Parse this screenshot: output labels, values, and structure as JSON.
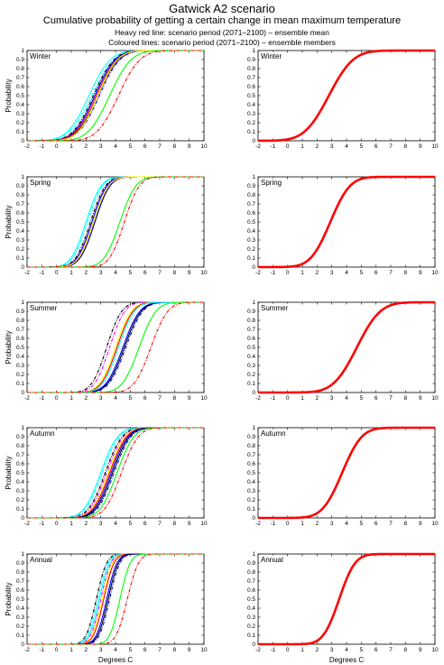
{
  "figure": {
    "title": "Gatwick A2 scenario",
    "subtitle": "Cumulative probability of getting a certain change in mean maximum temperature",
    "line1": "Heavy red line: scenario period (2071–2100) – ensemble mean",
    "line2": "Coloured lines: scenario period (2071–2100) – ensemble members"
  },
  "chart_data": [
    {
      "type": "line",
      "panel": "members",
      "label": "Winter",
      "xlabel": "",
      "ylabel": "Probability",
      "xlim": [
        -2,
        10
      ],
      "ylim": [
        0,
        1
      ],
      "xticks": [
        -2,
        -1,
        0,
        1,
        2,
        3,
        4,
        5,
        6,
        7,
        8,
        9,
        10
      ],
      "yticks": [
        0,
        0.1,
        0.2,
        0.3,
        0.4,
        0.5,
        0.6,
        0.7,
        0.8,
        0.9,
        1
      ],
      "series": [
        {
          "style": "solid",
          "color": "#00ffff",
          "mu": 2.2,
          "sigma": 1.15
        },
        {
          "style": "dashdot",
          "color": "#00ffff",
          "mu": 2.4,
          "sigma": 1.2
        },
        {
          "style": "dashdot",
          "color": "#000000",
          "mu": 2.5,
          "sigma": 1.1
        },
        {
          "style": "dashdot",
          "color": "#ff00ff",
          "mu": 2.6,
          "sigma": 1.1
        },
        {
          "style": "solid",
          "color": "#0000ff",
          "mu": 2.6,
          "sigma": 1.1
        },
        {
          "style": "solid",
          "color": "#000000",
          "mu": 2.8,
          "sigma": 1.1
        },
        {
          "style": "dashdot",
          "color": "#0000ff",
          "mu": 2.9,
          "sigma": 1.1
        },
        {
          "style": "solid",
          "color": "#ff0000",
          "mu": 2.7,
          "sigma": 1.1
        },
        {
          "style": "solid",
          "color": "#ffff00",
          "mu": 2.8,
          "sigma": 1.05
        },
        {
          "style": "solid",
          "color": "#00ff00",
          "mu": 3.6,
          "sigma": 1.15
        },
        {
          "style": "dashdot",
          "color": "#ff0000",
          "mu": 4.2,
          "sigma": 1.15
        }
      ]
    },
    {
      "type": "line",
      "panel": "mean",
      "label": "Winter",
      "xlabel": "",
      "ylabel": "",
      "xlim": [
        -2,
        10
      ],
      "ylim": [
        0,
        1
      ],
      "xticks": [
        -2,
        -1,
        0,
        1,
        2,
        3,
        4,
        5,
        6,
        7,
        8,
        9,
        10
      ],
      "yticks": [
        0,
        0.1,
        0.2,
        0.3,
        0.4,
        0.5,
        0.6,
        0.7,
        0.8,
        0.9,
        1
      ],
      "series": [
        {
          "style": "heavy",
          "color": "#ff0000",
          "mu": 2.8,
          "sigma": 1.3
        }
      ]
    },
    {
      "type": "line",
      "panel": "members",
      "label": "Spring",
      "xlabel": "",
      "ylabel": "Probability",
      "xlim": [
        -2,
        10
      ],
      "ylim": [
        0,
        1
      ],
      "xticks": [
        -2,
        -1,
        0,
        1,
        2,
        3,
        4,
        5,
        6,
        7,
        8,
        9,
        10
      ],
      "yticks": [
        0,
        0.1,
        0.2,
        0.3,
        0.4,
        0.5,
        0.6,
        0.7,
        0.8,
        0.9,
        1
      ],
      "series": [
        {
          "style": "solid",
          "color": "#00ffff",
          "mu": 2.0,
          "sigma": 0.8
        },
        {
          "style": "dashdot",
          "color": "#00ffff",
          "mu": 2.1,
          "sigma": 0.8
        },
        {
          "style": "dashdot",
          "color": "#000000",
          "mu": 2.3,
          "sigma": 0.8
        },
        {
          "style": "dashdot",
          "color": "#ff00ff",
          "mu": 2.4,
          "sigma": 0.8
        },
        {
          "style": "solid",
          "color": "#0000ff",
          "mu": 2.4,
          "sigma": 0.8
        },
        {
          "style": "solid",
          "color": "#000000",
          "mu": 2.6,
          "sigma": 0.8
        },
        {
          "style": "dashdot",
          "color": "#0000ff",
          "mu": 2.6,
          "sigma": 0.8
        },
        {
          "style": "solid",
          "color": "#ff0000",
          "mu": 2.5,
          "sigma": 0.8
        },
        {
          "style": "solid",
          "color": "#ffff00",
          "mu": 2.5,
          "sigma": 0.8
        },
        {
          "style": "solid",
          "color": "#00ff00",
          "mu": 4.3,
          "sigma": 0.85
        },
        {
          "style": "dashdot",
          "color": "#ff0000",
          "mu": 4.6,
          "sigma": 0.8
        }
      ]
    },
    {
      "type": "line",
      "panel": "mean",
      "label": "Spring",
      "xlabel": "",
      "ylabel": "",
      "xlim": [
        -2,
        10
      ],
      "ylim": [
        0,
        1
      ],
      "xticks": [
        -2,
        -1,
        0,
        1,
        2,
        3,
        4,
        5,
        6,
        7,
        8,
        9,
        10
      ],
      "yticks": [
        0,
        0.1,
        0.2,
        0.3,
        0.4,
        0.5,
        0.6,
        0.7,
        0.8,
        0.9,
        1
      ],
      "series": [
        {
          "style": "heavy",
          "color": "#ff0000",
          "mu": 2.9,
          "sigma": 1.05
        }
      ]
    },
    {
      "type": "line",
      "panel": "members",
      "label": "Summer",
      "xlabel": "",
      "ylabel": "Probability",
      "xlim": [
        -2,
        10
      ],
      "ylim": [
        0,
        1
      ],
      "xticks": [
        -2,
        -1,
        0,
        1,
        2,
        3,
        4,
        5,
        6,
        7,
        8,
        9,
        10
      ],
      "yticks": [
        0,
        0.1,
        0.2,
        0.3,
        0.4,
        0.5,
        0.6,
        0.7,
        0.8,
        0.9,
        1
      ],
      "series": [
        {
          "style": "dashdot",
          "color": "#000000",
          "mu": 3.4,
          "sigma": 0.8
        },
        {
          "style": "dashdot",
          "color": "#ff00ff",
          "mu": 3.6,
          "sigma": 0.8
        },
        {
          "style": "solid",
          "color": "#ffff00",
          "mu": 4.0,
          "sigma": 0.85
        },
        {
          "style": "solid",
          "color": "#ff0000",
          "mu": 4.1,
          "sigma": 0.85
        },
        {
          "style": "solid",
          "color": "#0000ff",
          "mu": 4.5,
          "sigma": 0.9
        },
        {
          "style": "solid",
          "color": "#000000",
          "mu": 4.6,
          "sigma": 0.9
        },
        {
          "style": "dashdot",
          "color": "#0000ff",
          "mu": 4.7,
          "sigma": 0.9
        },
        {
          "style": "solid",
          "color": "#00ffff",
          "mu": 4.2,
          "sigma": 0.85
        },
        {
          "style": "solid",
          "color": "#00ff00",
          "mu": 5.6,
          "sigma": 0.9
        },
        {
          "style": "dashdot",
          "color": "#ff0000",
          "mu": 6.4,
          "sigma": 0.9
        }
      ]
    },
    {
      "type": "line",
      "panel": "mean",
      "label": "Summer",
      "xlabel": "",
      "ylabel": "",
      "xlim": [
        -2,
        10
      ],
      "ylim": [
        0,
        1
      ],
      "xticks": [
        -2,
        -1,
        0,
        1,
        2,
        3,
        4,
        5,
        6,
        7,
        8,
        9,
        10
      ],
      "yticks": [
        0,
        0.1,
        0.2,
        0.3,
        0.4,
        0.5,
        0.6,
        0.7,
        0.8,
        0.9,
        1
      ],
      "series": [
        {
          "style": "heavy",
          "color": "#ff0000",
          "mu": 4.7,
          "sigma": 1.25
        }
      ]
    },
    {
      "type": "line",
      "panel": "members",
      "label": "Autumn",
      "xlabel": "",
      "ylabel": "Probability",
      "xlim": [
        -2,
        10
      ],
      "ylim": [
        0,
        1
      ],
      "xticks": [
        -2,
        -1,
        0,
        1,
        2,
        3,
        4,
        5,
        6,
        7,
        8,
        9,
        10
      ],
      "yticks": [
        0,
        0.1,
        0.2,
        0.3,
        0.4,
        0.5,
        0.6,
        0.7,
        0.8,
        0.9,
        1
      ],
      "series": [
        {
          "style": "solid",
          "color": "#00ffff",
          "mu": 3.0,
          "sigma": 0.9
        },
        {
          "style": "dashdot",
          "color": "#00ffff",
          "mu": 3.1,
          "sigma": 0.9
        },
        {
          "style": "dashdot",
          "color": "#000000",
          "mu": 3.3,
          "sigma": 0.9
        },
        {
          "style": "dashdot",
          "color": "#ff00ff",
          "mu": 3.4,
          "sigma": 0.9
        },
        {
          "style": "solid",
          "color": "#ffff00",
          "mu": 3.5,
          "sigma": 0.9
        },
        {
          "style": "solid",
          "color": "#ff0000",
          "mu": 3.6,
          "sigma": 0.9
        },
        {
          "style": "solid",
          "color": "#0000ff",
          "mu": 3.7,
          "sigma": 0.9
        },
        {
          "style": "solid",
          "color": "#000000",
          "mu": 3.8,
          "sigma": 0.9
        },
        {
          "style": "dashdot",
          "color": "#0000ff",
          "mu": 3.9,
          "sigma": 0.9
        },
        {
          "style": "solid",
          "color": "#00ff00",
          "mu": 4.1,
          "sigma": 0.9
        },
        {
          "style": "dashdot",
          "color": "#ff0000",
          "mu": 4.4,
          "sigma": 0.9
        }
      ]
    },
    {
      "type": "line",
      "panel": "mean",
      "label": "Autumn",
      "xlabel": "",
      "ylabel": "",
      "xlim": [
        -2,
        10
      ],
      "ylim": [
        0,
        1
      ],
      "xticks": [
        -2,
        -1,
        0,
        1,
        2,
        3,
        4,
        5,
        6,
        7,
        8,
        9,
        10
      ],
      "yticks": [
        0,
        0.1,
        0.2,
        0.3,
        0.4,
        0.5,
        0.6,
        0.7,
        0.8,
        0.9,
        1
      ],
      "series": [
        {
          "style": "heavy",
          "color": "#ff0000",
          "mu": 3.7,
          "sigma": 1.05
        }
      ]
    },
    {
      "type": "line",
      "panel": "members",
      "label": "Annual",
      "xlabel": "Degrees C",
      "ylabel": "Probability",
      "xlim": [
        -2,
        10
      ],
      "ylim": [
        0,
        1
      ],
      "xticks": [
        -2,
        -1,
        0,
        1,
        2,
        3,
        4,
        5,
        6,
        7,
        8,
        9,
        10
      ],
      "yticks": [
        0,
        0.1,
        0.2,
        0.3,
        0.4,
        0.5,
        0.6,
        0.7,
        0.8,
        0.9,
        1
      ],
      "series": [
        {
          "style": "dashdot",
          "color": "#000000",
          "mu": 2.7,
          "sigma": 0.55
        },
        {
          "style": "dashdot",
          "color": "#00ffff",
          "mu": 2.8,
          "sigma": 0.55
        },
        {
          "style": "solid",
          "color": "#00ffff",
          "mu": 2.9,
          "sigma": 0.55
        },
        {
          "style": "dashdot",
          "color": "#ff00ff",
          "mu": 3.0,
          "sigma": 0.55
        },
        {
          "style": "solid",
          "color": "#ffff00",
          "mu": 3.1,
          "sigma": 0.55
        },
        {
          "style": "solid",
          "color": "#ff0000",
          "mu": 3.2,
          "sigma": 0.55
        },
        {
          "style": "solid",
          "color": "#0000ff",
          "mu": 3.4,
          "sigma": 0.55
        },
        {
          "style": "solid",
          "color": "#000000",
          "mu": 3.5,
          "sigma": 0.55
        },
        {
          "style": "dashdot",
          "color": "#0000ff",
          "mu": 3.6,
          "sigma": 0.55
        },
        {
          "style": "solid",
          "color": "#00ff00",
          "mu": 4.3,
          "sigma": 0.55
        },
        {
          "style": "dashdot",
          "color": "#ff0000",
          "mu": 4.8,
          "sigma": 0.6
        }
      ]
    },
    {
      "type": "line",
      "panel": "mean",
      "label": "Annual",
      "xlabel": "Degrees C",
      "ylabel": "",
      "xlim": [
        -2,
        10
      ],
      "ylim": [
        0,
        1
      ],
      "xticks": [
        -2,
        -1,
        0,
        1,
        2,
        3,
        4,
        5,
        6,
        7,
        8,
        9,
        10
      ],
      "yticks": [
        0,
        0.1,
        0.2,
        0.3,
        0.4,
        0.5,
        0.6,
        0.7,
        0.8,
        0.9,
        1
      ],
      "series": [
        {
          "style": "heavy",
          "color": "#ff0000",
          "mu": 3.5,
          "sigma": 0.85
        }
      ]
    }
  ]
}
